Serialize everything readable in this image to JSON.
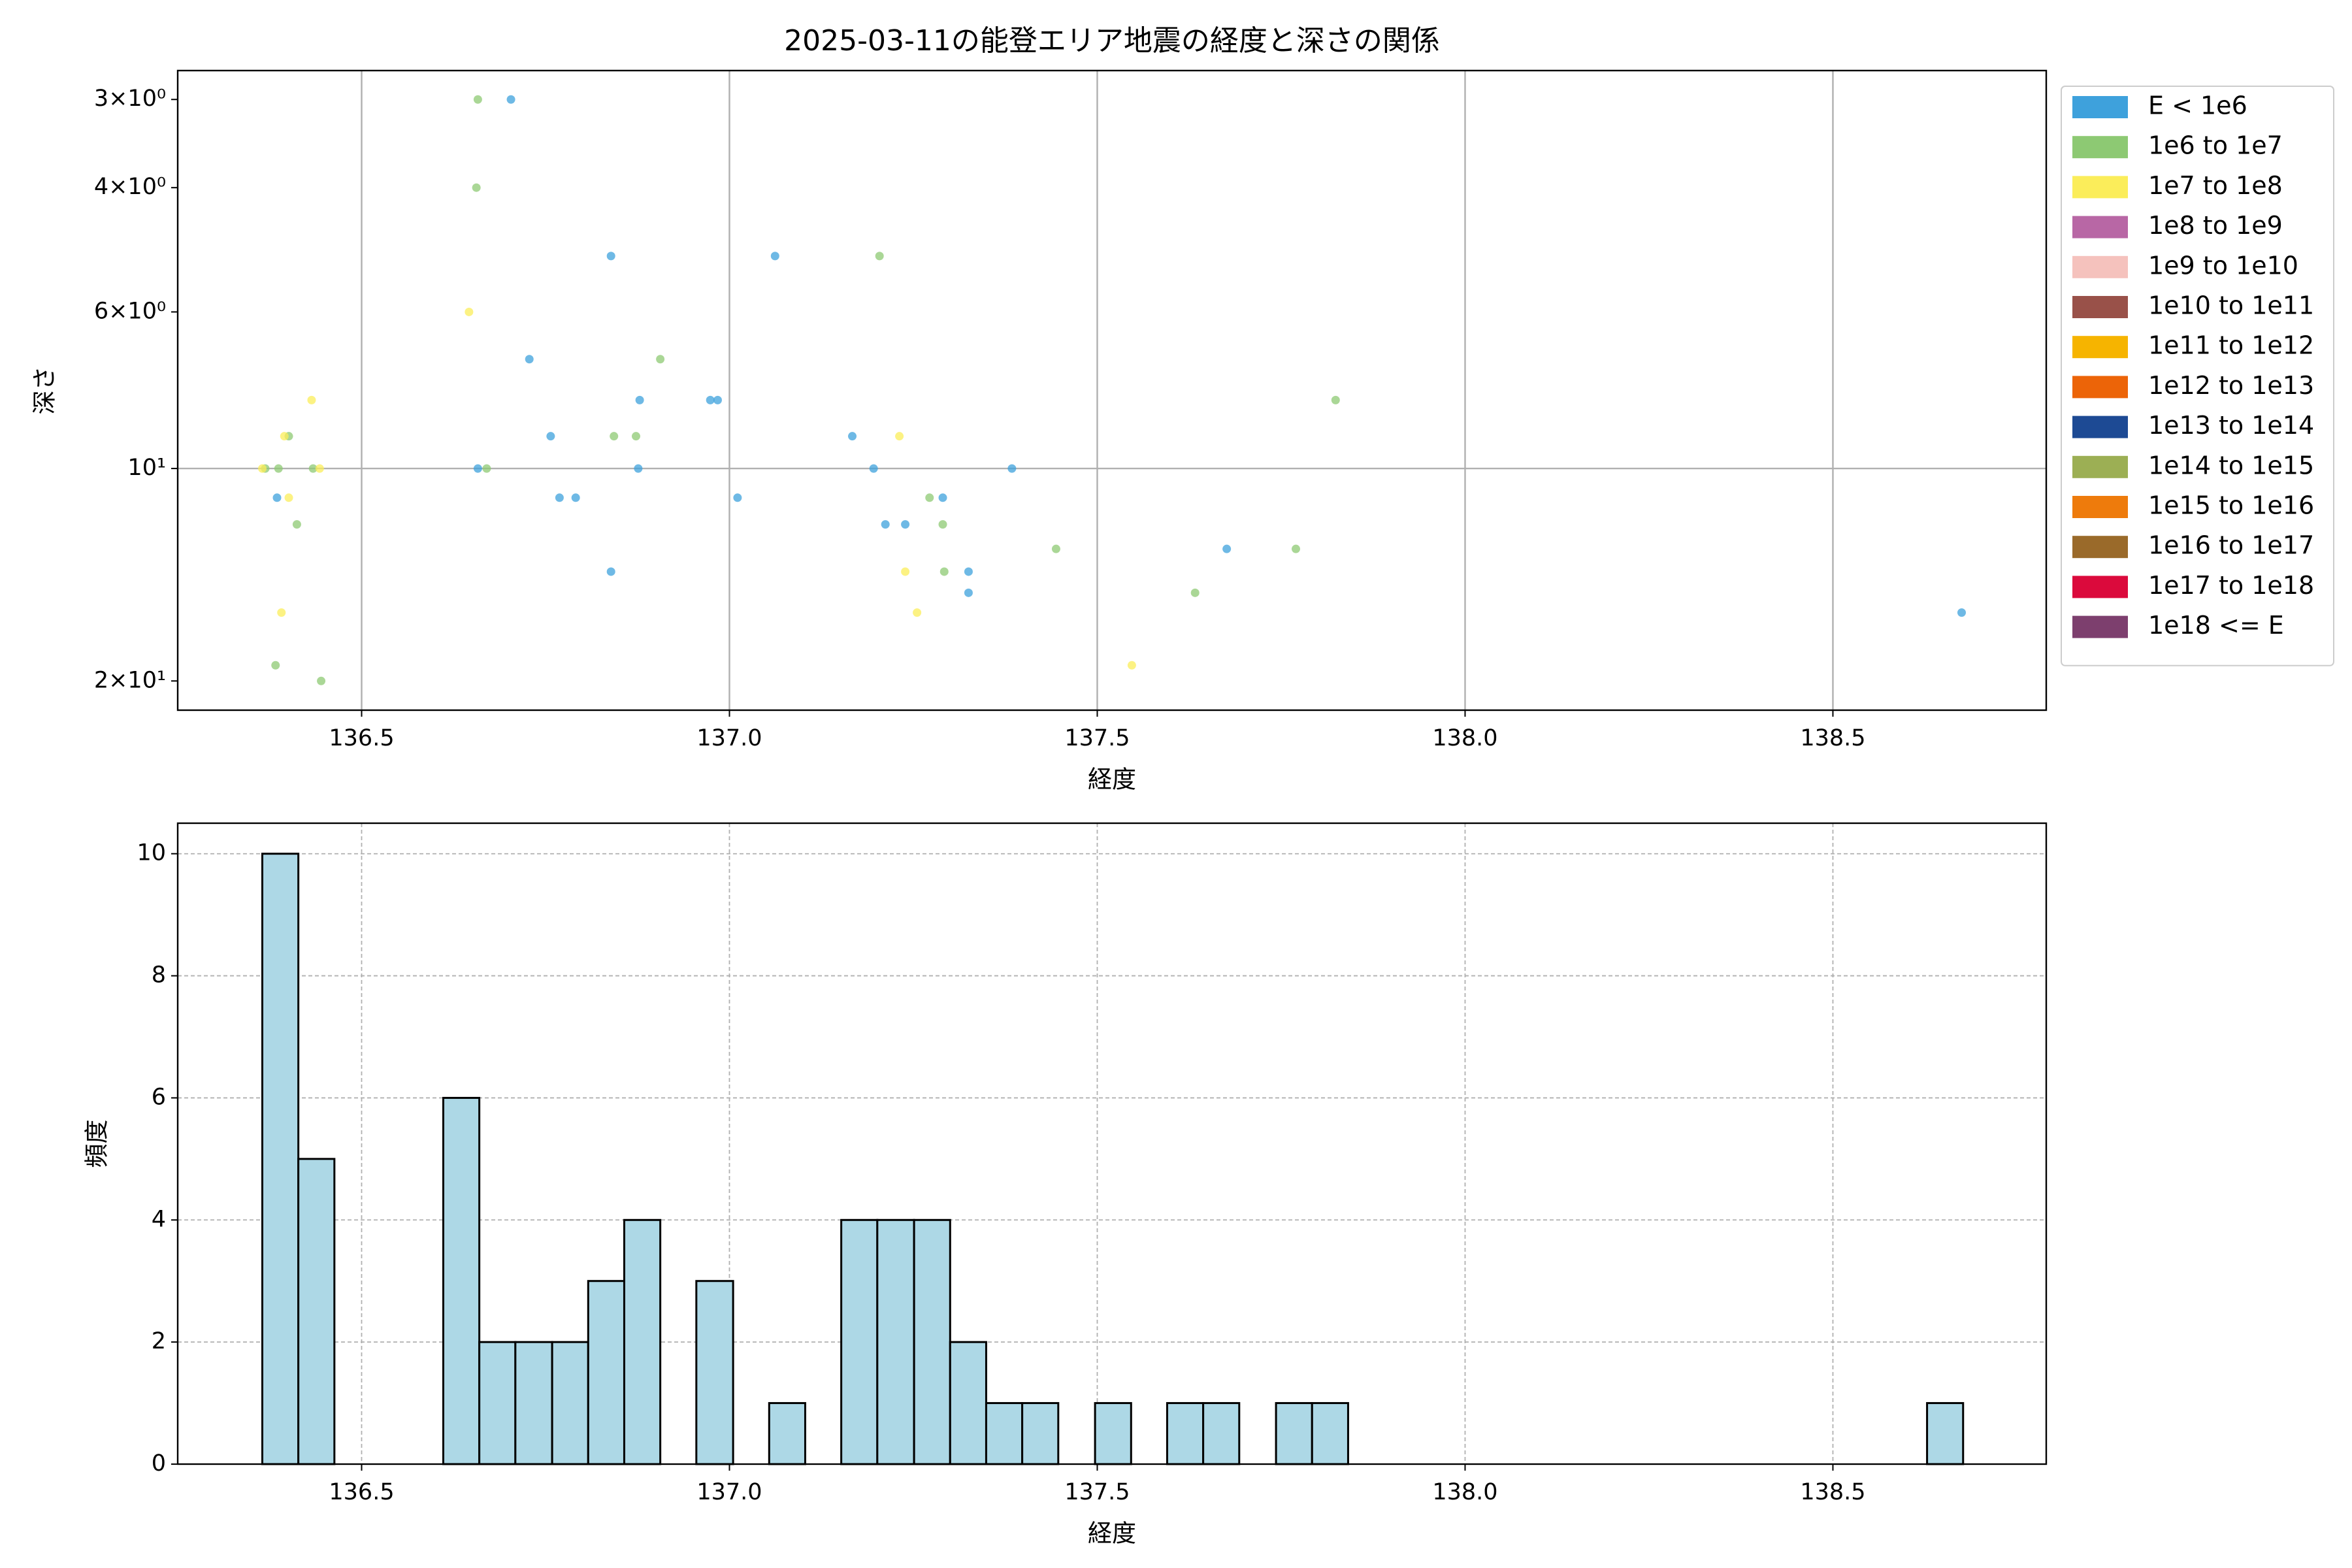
{
  "chart_data": [
    {
      "type": "scatter",
      "title": "2025-03-11の能登エリア地震の経度と深さの関係",
      "x_label": "経度",
      "y_label": "深さ",
      "xlim": [
        136.25,
        138.79
      ],
      "xticks": [
        136.5,
        {
          "value": 137,
          "label": "137.0"
        },
        137.5,
        {
          "value": 138,
          "label": "138.0"
        },
        138.5
      ],
      "ylim": [
        2.73,
        22
      ],
      "y_log": true,
      "y_inverted": true,
      "yticks": [
        {
          "value": 3,
          "label": "3×10⁰"
        },
        {
          "value": 4,
          "label": "4×10⁰"
        },
        {
          "value": 6,
          "label": "6×10⁰"
        },
        {
          "value": 10,
          "label": "10¹",
          "grid": true
        },
        {
          "value": 20,
          "label": "2×10¹"
        }
      ],
      "grid": true,
      "legend": "outside-upper-right",
      "series": [
        {
          "name": "E < 1e6",
          "color": "#3ea1dc",
          "x": [
            136.703,
            136.839,
            137.062,
            136.728,
            136.757,
            136.878,
            136.974,
            136.984,
            136.658,
            136.876,
            137.196,
            137.384,
            137.167,
            136.385,
            136.769,
            136.791,
            137.011,
            137.29,
            137.212,
            137.239,
            136.839,
            137.325,
            137.325,
            137.676,
            138.675
          ],
          "values": [
            3,
            5,
            5,
            7,
            9,
            8,
            8,
            8,
            10,
            10,
            10,
            10,
            9,
            11,
            11,
            11,
            11,
            11,
            12,
            12,
            14,
            14,
            15,
            13,
            16
          ]
        },
        {
          "name": "1e6 to 1e7",
          "color": "#8dc973",
          "x": [
            136.658,
            136.656,
            137.204,
            136.906,
            137.824,
            136.401,
            136.843,
            136.873,
            136.369,
            136.387,
            136.434,
            136.67,
            137.272,
            136.412,
            137.29,
            137.292,
            137.444,
            137.77,
            137.633,
            136.383,
            136.445
          ],
          "values": [
            3,
            4,
            5,
            7,
            8,
            9,
            9,
            9,
            10,
            10,
            10,
            10,
            11,
            12,
            12,
            14,
            13,
            13,
            15,
            19,
            20
          ]
        },
        {
          "name": "1e7 to 1e8",
          "color": "#fbed5a",
          "x": [
            136.646,
            136.432,
            136.395,
            137.231,
            136.365,
            136.443,
            136.401,
            137.239,
            136.391,
            137.255,
            137.547
          ],
          "values": [
            6,
            8,
            9,
            9,
            10,
            10,
            11,
            14,
            16,
            16,
            19
          ]
        },
        {
          "name": "1e8 to 1e9",
          "color": "#b867a5",
          "x": [],
          "values": []
        },
        {
          "name": "1e9 to 1e10",
          "color": "#f5c2bd",
          "x": [],
          "values": []
        },
        {
          "name": "1e10 to 1e11",
          "color": "#995149",
          "x": [],
          "values": []
        },
        {
          "name": "1e11 to 1e12",
          "color": "#f6b400",
          "x": [],
          "values": []
        },
        {
          "name": "1e12 to 1e13",
          "color": "#ec6408",
          "x": [],
          "values": []
        },
        {
          "name": "1e13 to 1e14",
          "color": "#1d4a94",
          "x": [],
          "values": []
        },
        {
          "name": "1e14 to 1e15",
          "color": "#9caf54",
          "x": [],
          "values": []
        },
        {
          "name": "1e15 to 1e16",
          "color": "#ee7b0c",
          "x": [],
          "values": []
        },
        {
          "name": "1e16 to 1e17",
          "color": "#9a6a2a",
          "x": [],
          "values": []
        },
        {
          "name": "1e17 to 1e18",
          "color": "#db0a3c",
          "x": [],
          "values": []
        },
        {
          "name": "1e18 <= E",
          "color": "#7d3f6e",
          "x": [],
          "values": []
        }
      ]
    },
    {
      "type": "histogram",
      "x_label": "経度",
      "y_label": "頻度",
      "color": "#add8e6",
      "edge_color": "#000000",
      "xlim": [
        136.25,
        138.79
      ],
      "xticks": [
        136.5,
        {
          "value": 137,
          "label": "137.0"
        },
        137.5,
        {
          "value": 138,
          "label": "138.0"
        },
        138.5
      ],
      "ylim": [
        0,
        10.5
      ],
      "yticks": [
        0,
        2,
        4,
        6,
        8,
        10
      ],
      "grid": true,
      "bins": [
        136.365,
        136.414,
        136.463,
        136.513,
        136.562,
        136.611,
        136.66,
        136.709,
        136.759,
        136.808,
        136.857,
        136.906,
        136.955,
        137.005,
        137.054,
        137.103,
        137.152,
        137.201,
        137.251,
        137.3,
        137.349,
        137.398,
        137.447,
        137.497,
        137.546,
        137.595,
        137.644,
        137.693,
        137.743,
        137.792,
        137.841,
        137.89,
        137.939,
        137.989,
        138.038,
        138.087,
        138.136,
        138.185,
        138.235,
        138.284,
        138.333,
        138.382,
        138.431,
        138.481,
        138.53,
        138.579,
        138.628,
        138.677
      ],
      "values": [
        10,
        5,
        0,
        0,
        0,
        6,
        2,
        2,
        2,
        3,
        4,
        0,
        3,
        0,
        1,
        0,
        4,
        4,
        4,
        2,
        1,
        1,
        0,
        1,
        0,
        1,
        1,
        0,
        1,
        1,
        0,
        0,
        0,
        0,
        0,
        0,
        0,
        0,
        0,
        0,
        0,
        0,
        0,
        0,
        0,
        0,
        1
      ]
    }
  ]
}
